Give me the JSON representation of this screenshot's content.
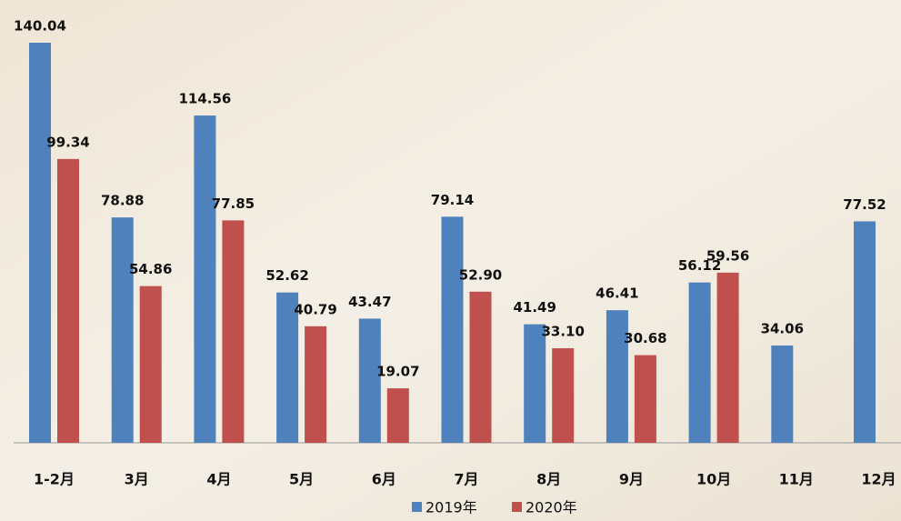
{
  "chart_data": {
    "type": "bar",
    "categories": [
      "1-2月",
      "3月",
      "4月",
      "5月",
      "6月",
      "7月",
      "8月",
      "9月",
      "10月",
      "11月",
      "12月"
    ],
    "series": [
      {
        "name": "2019年",
        "color": "#4f81bd",
        "values": [
          140.04,
          78.88,
          114.56,
          52.62,
          43.47,
          79.14,
          41.49,
          46.41,
          56.12,
          34.06,
          77.52
        ]
      },
      {
        "name": "2020年",
        "color": "#c0504d",
        "values": [
          99.34,
          54.86,
          77.85,
          40.79,
          19.07,
          52.9,
          33.1,
          30.68,
          59.56,
          null,
          null
        ],
        "value_labels": [
          "99.34",
          "54.86",
          "77.85",
          "40.79",
          "19.07",
          "52.90",
          "33.10",
          "30.68",
          "59.56",
          null,
          null
        ]
      }
    ]
  }
}
